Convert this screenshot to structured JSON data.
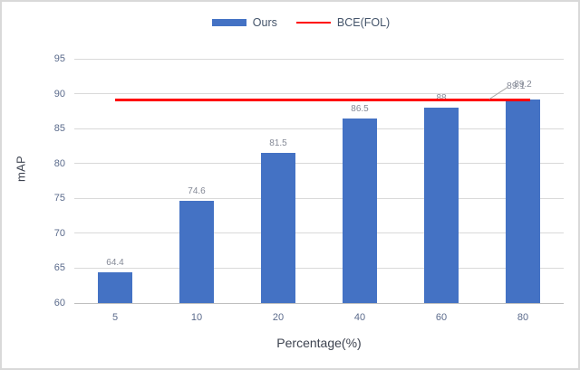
{
  "chart_data": {
    "type": "bar",
    "title": "",
    "categories": [
      "5",
      "10",
      "20",
      "40",
      "60",
      "80"
    ],
    "series": [
      {
        "name": "Ours",
        "type": "bar",
        "color": "#4472C4",
        "values": [
          64.4,
          74.6,
          81.5,
          86.5,
          88,
          89.2
        ],
        "labels": [
          "64.4",
          "74.6",
          "81.5",
          "86.5",
          "88",
          "89.2"
        ]
      },
      {
        "name": "BCE(FOL)",
        "type": "line",
        "color": "#FF0000",
        "values": [
          89.1,
          89.1,
          89.1,
          89.1,
          89.1,
          89.1
        ],
        "label": "89.1"
      }
    ],
    "xlabel": "Percentage(%)",
    "ylabel": "mAP",
    "ylim": [
      60,
      95
    ],
    "ytick_step": 5,
    "yticks": [
      "60",
      "65",
      "70",
      "75",
      "80",
      "85",
      "90",
      "95"
    ],
    "grid": true,
    "legend_position": "top-center",
    "colors": {
      "bar": "#4472C4",
      "line": "#FF0000",
      "gridline": "#D9D9D9",
      "tick_label": "#5B6B8C",
      "data_label": "#848996",
      "axis_title": "#3D4350",
      "legend_text": "#44546A",
      "leader_line": "#A6A6A6"
    }
  }
}
